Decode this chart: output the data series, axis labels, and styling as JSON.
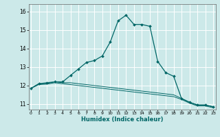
{
  "title": "",
  "xlabel": "Humidex (Indice chaleur)",
  "background_color": "#cce9e9",
  "grid_color": "#ffffff",
  "line_color": "#006666",
  "x_ticks": [
    0,
    1,
    2,
    3,
    4,
    5,
    6,
    7,
    8,
    9,
    10,
    11,
    12,
    13,
    14,
    15,
    16,
    17,
    18,
    19,
    20,
    21,
    22,
    23
  ],
  "y_ticks": [
    11,
    12,
    13,
    14,
    15,
    16
  ],
  "xlim": [
    -0.3,
    23.3
  ],
  "ylim": [
    10.7,
    16.4
  ],
  "series1_x": [
    0,
    1,
    2,
    3,
    4,
    5,
    6,
    7,
    8,
    9,
    10,
    11,
    12,
    13,
    14,
    15,
    16,
    17,
    18,
    19,
    20,
    21,
    22,
    23
  ],
  "series1_y": [
    11.85,
    12.1,
    12.15,
    12.2,
    12.2,
    12.55,
    12.9,
    13.25,
    13.35,
    13.6,
    14.35,
    15.5,
    15.8,
    15.3,
    15.3,
    15.2,
    13.3,
    12.7,
    12.5,
    11.3,
    11.1,
    10.95,
    10.95,
    10.85
  ],
  "series2_x": [
    0,
    1,
    2,
    3,
    4,
    5,
    6,
    7,
    8,
    9,
    10,
    11,
    12,
    13,
    14,
    15,
    16,
    17,
    18,
    19,
    20,
    21,
    22,
    23
  ],
  "series2_y": [
    11.85,
    12.1,
    12.1,
    12.2,
    12.15,
    12.15,
    12.1,
    12.05,
    12.0,
    11.95,
    11.9,
    11.85,
    11.8,
    11.75,
    11.7,
    11.65,
    11.6,
    11.55,
    11.5,
    11.3,
    11.1,
    10.95,
    10.95,
    10.85
  ],
  "series3_x": [
    0,
    1,
    2,
    3,
    4,
    5,
    6,
    7,
    8,
    9,
    10,
    11,
    12,
    13,
    14,
    15,
    16,
    17,
    18,
    19,
    20,
    21,
    22,
    23
  ],
  "series3_y": [
    11.85,
    12.05,
    12.08,
    12.15,
    12.1,
    12.05,
    12.0,
    11.95,
    11.9,
    11.85,
    11.8,
    11.75,
    11.7,
    11.65,
    11.6,
    11.55,
    11.5,
    11.45,
    11.4,
    11.25,
    11.05,
    10.9,
    10.9,
    10.8
  ]
}
